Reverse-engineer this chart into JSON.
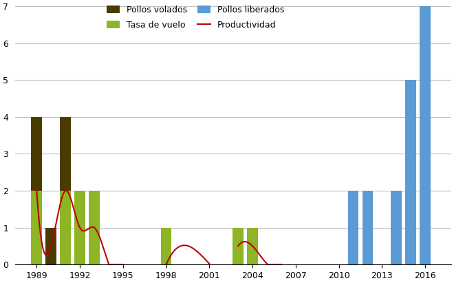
{
  "years_volados": [
    1989,
    1990,
    1991,
    1992,
    1993,
    1998,
    1999,
    2003,
    2004
  ],
  "pollos_volados": [
    4,
    1,
    4,
    2,
    2,
    1,
    0,
    1,
    1
  ],
  "tasa_vuelo": [
    2,
    0,
    2,
    2,
    2,
    1,
    0,
    1,
    1
  ],
  "years_liberados": [
    2011,
    2012,
    2014,
    2015,
    2016
  ],
  "pollos_liberados": [
    2,
    2,
    2,
    5,
    7
  ],
  "productividad_x": [
    1989,
    1990,
    1991,
    1992,
    1993,
    1994,
    1995,
    1998,
    1999,
    2000,
    2001,
    2003,
    2004,
    2005,
    2006
  ],
  "productividad_y": [
    2.0,
    0.5,
    2.0,
    1.0,
    1.0,
    0.02,
    0.0,
    0.0,
    0.5,
    0.4,
    0.02,
    0.5,
    0.5,
    0.02,
    0.0
  ],
  "color_pollos_volados": "#4a3c00",
  "color_tasa_vuelo": "#8db526",
  "color_pollos_liberados": "#5b9bd5",
  "color_productividad": "#c00000",
  "color_background": "#ffffff",
  "color_grid": "#bfbfbf",
  "ylim": [
    0,
    7
  ],
  "yticks": [
    0,
    1,
    2,
    3,
    4,
    5,
    6,
    7
  ],
  "xtick_labels": [
    "1989",
    "1992",
    "1995",
    "1998",
    "2001",
    "2004",
    "2007",
    "2010",
    "2013",
    "2016"
  ],
  "xtick_positions": [
    1989,
    1992,
    1995,
    1998,
    2001,
    2004,
    2007,
    2010,
    2013,
    2016
  ],
  "xlim": [
    1987.5,
    2017.8
  ],
  "bar_width": 0.75,
  "legend_items": [
    "Pollos volados",
    "Tasa de vuelo",
    "Pollos liberados",
    "Productividad"
  ]
}
